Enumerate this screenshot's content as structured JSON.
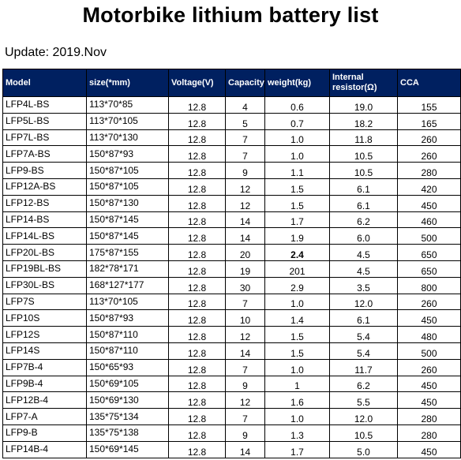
{
  "title": "Motorbike lithium battery list",
  "update": "Update: 2019.Nov",
  "table": {
    "headers": [
      "Model",
      "size(*mm)",
      "Voltage(V)",
      "Capacity(Ah)",
      "weight(kg)",
      "Internal resistor(Ω)",
      "CCA"
    ],
    "rows": [
      [
        "LFP4L-BS",
        "113*70*85",
        "12.8",
        "4",
        "0.6",
        "19.0",
        "155"
      ],
      [
        "LFP5L-BS",
        "113*70*105",
        "12.8",
        "5",
        "0.7",
        "18.2",
        "165"
      ],
      [
        "LFP7L-BS",
        "113*70*130",
        "12.8",
        "7",
        "1.0",
        "11.8",
        "260"
      ],
      [
        "LFP7A-BS",
        "150*87*93",
        "12.8",
        "7",
        "1.0",
        "10.5",
        "260"
      ],
      [
        "LFP9-BS",
        "150*87*105",
        "12.8",
        "9",
        "1.1",
        "10.5",
        "280"
      ],
      [
        "LFP12A-BS",
        "150*87*105",
        "12.8",
        "12",
        "1.5",
        "6.1",
        "420"
      ],
      [
        "LFP12-BS",
        "150*87*130",
        "12.8",
        "12",
        "1.5",
        "6.1",
        "450"
      ],
      [
        "LFP14-BS",
        "150*87*145",
        "12.8",
        "14",
        "1.7",
        "6.2",
        "460"
      ],
      [
        "LFP14L-BS",
        "150*87*145",
        "12.8",
        "14",
        "1.9",
        "6.0",
        "500"
      ],
      [
        "LFP20L-BS",
        "175*87*155",
        "12.8",
        "20",
        "2.4",
        "4.5",
        "650"
      ],
      [
        "LFP19BL-BS",
        "182*78*171",
        "12.8",
        "19",
        "201",
        "4.5",
        "650"
      ],
      [
        "LFP30L-BS",
        "168*127*177",
        "12.8",
        "30",
        "2.9",
        "3.5",
        "800"
      ],
      [
        "LFP7S",
        "113*70*105",
        "12.8",
        "7",
        "1.0",
        "12.0",
        "260"
      ],
      [
        "LFP10S",
        "150*87*93",
        "12.8",
        "10",
        "1.4",
        "6.1",
        "450"
      ],
      [
        "LFP12S",
        "150*87*110",
        "12.8",
        "12",
        "1.5",
        "5.4",
        "480"
      ],
      [
        "LFP14S",
        "150*87*110",
        "12.8",
        "14",
        "1.5",
        "5.4",
        "500"
      ],
      [
        "LFP7B-4",
        "150*65*93",
        "12.8",
        "7",
        "1.0",
        "11.7",
        "260"
      ],
      [
        "LFP9B-4",
        "150*69*105",
        "12.8",
        "9",
        "1",
        "6.2",
        "450"
      ],
      [
        "LFP12B-4",
        "150*69*130",
        "12.8",
        "12",
        "1.6",
        "5.5",
        "450"
      ],
      [
        "LFP7-A",
        "135*75*134",
        "12.8",
        "7",
        "1.0",
        "12.0",
        "280"
      ],
      [
        "LFP9-B",
        "135*75*138",
        "12.8",
        "9",
        "1.3",
        "10.5",
        "280"
      ],
      [
        "LFP14B-4",
        "150*69*145",
        "12.8",
        "14",
        "1.7",
        "5.0",
        "450"
      ]
    ]
  }
}
